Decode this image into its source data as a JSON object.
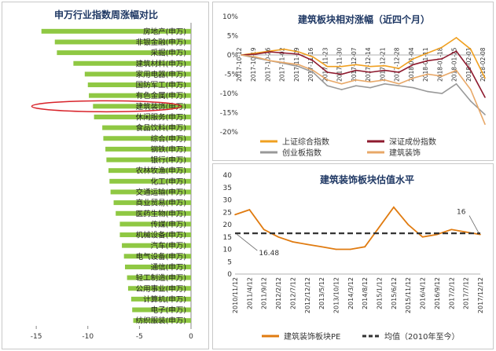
{
  "chart_data": [
    {
      "type": "bar",
      "orientation": "horizontal",
      "title": "申万行业指数周涨幅对比",
      "categories": [
        "房地产(申万)",
        "非银金融(申万)",
        "采掘(申万)",
        "建筑材料(申万)",
        "家用电器(申万)",
        "国防军工(申万)",
        "有色金属(申万)",
        "建筑装饰(申万)",
        "休闲服务(申万)",
        "食品饮料(申万)",
        "综合(申万)",
        "钢铁(申万)",
        "银行(申万)",
        "农林牧渔(申万)",
        "化工(申万)",
        "交通运输(申万)",
        "商业贸易(申万)",
        "医药生物(申万)",
        "传媒(申万)",
        "机械设备(申万)",
        "汽车(申万)",
        "电气设备(申万)",
        "通信(申万)",
        "轻工制造(申万)",
        "公用事业(申万)",
        "计算机(申万)",
        "电子(申万)",
        "纺织服装(申万)"
      ],
      "values": [
        -14.5,
        -13.2,
        -13.0,
        -11.4,
        -10.3,
        -10.0,
        -9.9,
        -9.5,
        -9.4,
        -8.6,
        -8.5,
        -8.3,
        -8.2,
        -8.0,
        -7.9,
        -7.8,
        -7.5,
        -7.3,
        -6.9,
        -6.9,
        -6.7,
        -6.5,
        -6.4,
        -6.2,
        -6.1,
        -5.8,
        -5.7,
        -5.6
      ],
      "highlight": "建筑装饰(申万)",
      "xlim": [
        -16,
        0
      ],
      "xticks": [
        -15,
        -10,
        -5,
        0
      ],
      "color": "#8fc843",
      "grid": false
    },
    {
      "type": "line",
      "title": "建筑板块相对涨幅（近四个月）",
      "x": [
        "2017-10-12",
        "2017-10-19",
        "2017-10-26",
        "2017-11-02",
        "2017-11-09",
        "2017-11-16",
        "2017-11-23",
        "2017-11-30",
        "2017-12-07",
        "2017-12-14",
        "2017-12-21",
        "2017-12-28",
        "2018-01-04",
        "2018-01-11",
        "2018-01-18",
        "2018-01-25",
        "2018-02-01",
        "2018-02-08"
      ],
      "x_tick_labels": [
        "2017-10-12",
        "2017-10-19",
        "2017-10-26",
        "2017-11-02",
        "2017-11-09",
        "2017-11-16",
        "2017-11-23",
        "2017-11-30",
        "2017-12-07",
        "2017-12-14",
        "2017-12-21",
        "2017-12-28",
        "2018-01-04",
        "2018-01-11",
        "2018-01-18",
        "2018-01-25",
        "2018-02-01",
        "2018-02-08"
      ],
      "yticks": [
        "-20%",
        "-15%",
        "-10%",
        "-5%",
        "0%",
        "5%",
        "10%"
      ],
      "ylim": [
        -20,
        10
      ],
      "legend_position": "bottom",
      "series": [
        {
          "name": "上证综合指数",
          "color": "#f0a020",
          "values": [
            0,
            0.5,
            1.0,
            1.5,
            0.8,
            -0.5,
            -3.0,
            -3.0,
            -2.5,
            -3.0,
            -2.8,
            -3.5,
            -1.0,
            0.5,
            2.0,
            4.5,
            1.5,
            -6.0
          ]
        },
        {
          "name": "深证成份指数",
          "color": "#8e1a2e",
          "values": [
            0,
            0.2,
            0.8,
            0.5,
            0.2,
            -1.5,
            -4.5,
            -5.0,
            -4.0,
            -4.5,
            -4.0,
            -4.5,
            -2.5,
            -1.5,
            -1.0,
            1.0,
            -4.0,
            -11.0
          ]
        },
        {
          "name": "创业板指数",
          "color": "#999999",
          "values": [
            0,
            -0.8,
            -1.5,
            -2.2,
            -3.0,
            -4.5,
            -8.0,
            -9.0,
            -8.0,
            -8.5,
            -7.5,
            -8.0,
            -8.5,
            -9.5,
            -10.0,
            -7.5,
            -12.0,
            -15.5
          ]
        },
        {
          "name": "建筑装饰",
          "color": "#e8a868",
          "values": [
            0,
            -0.5,
            -1.5,
            -2.0,
            -2.5,
            -4.0,
            -6.5,
            -7.5,
            -6.5,
            -7.0,
            -6.5,
            -7.5,
            -6.0,
            -5.0,
            -5.5,
            -4.0,
            -9.0,
            -18.0
          ]
        }
      ]
    },
    {
      "type": "line",
      "title": "建筑装饰板块估值水平",
      "x": [
        "2010/11/12",
        "2011/4/12",
        "2011/9/12",
        "2012/2/12",
        "2012/7/12",
        "2012/12/12",
        "2013/5/12",
        "2013/10/12",
        "2014/3/12",
        "2014/8/12",
        "2015/1/12",
        "2015/6/12",
        "2015/11/12",
        "2016/4/12",
        "2016/9/12",
        "2017/2/12",
        "2017/7/12",
        "2017/12/12"
      ],
      "x_tick_labels": [
        "2010/11/12",
        "2011/4/12",
        "2011/9/12",
        "2012/2/12",
        "2012/7/12",
        "2012/12/12",
        "2013/5/12",
        "2013/10/12",
        "2014/3/12",
        "2014/8/12",
        "2015/1/12",
        "2015/6/12",
        "2015/11/12",
        "2016/4/12",
        "2016/9/12",
        "2017/2/12",
        "2017/7/12",
        "2017/12/12"
      ],
      "yticks": [
        "0",
        "5",
        "10",
        "15",
        "20",
        "25",
        "30",
        "35",
        "40"
      ],
      "ylim": [
        0,
        40
      ],
      "legend_position": "bottom",
      "annotations": [
        {
          "text": "16.48",
          "value": 16.48
        },
        {
          "text": "16",
          "value": 16
        }
      ],
      "series": [
        {
          "name": "建筑装饰板块PE",
          "color": "#e07b10",
          "values": [
            24,
            26,
            18,
            15,
            13,
            12,
            11,
            10,
            10,
            11,
            19,
            27,
            20,
            15,
            16,
            18,
            17,
            16
          ]
        },
        {
          "name": "均值（2010年至今）",
          "color": "#333333",
          "dashed": true,
          "values": [
            16.48,
            16.48,
            16.48,
            16.48,
            16.48,
            16.48,
            16.48,
            16.48,
            16.48,
            16.48,
            16.48,
            16.48,
            16.48,
            16.48,
            16.48,
            16.48,
            16.48,
            16.48
          ]
        }
      ]
    }
  ]
}
